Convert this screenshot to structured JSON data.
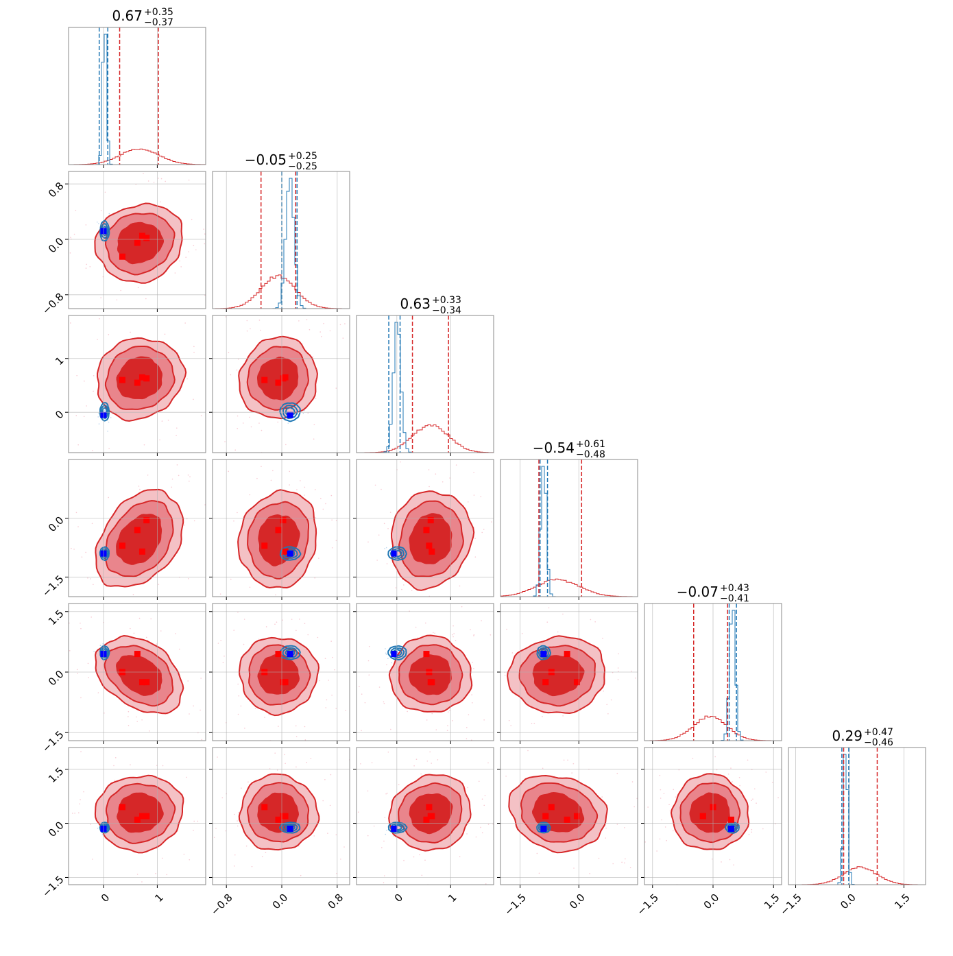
{
  "chart_data": {
    "type": "corner",
    "n_params": 6,
    "colors": {
      "posterior": "#d62728",
      "comparison": "#1f77b4",
      "truth_a": "#ff0000",
      "truth_b": "#0000ff"
    },
    "diagonal_titles": [
      {
        "median": "0.67",
        "plus": "+0.35",
        "minus": "−0.37"
      },
      {
        "median": "−0.05",
        "plus": "+0.25",
        "minus": "−0.25"
      },
      {
        "median": "0.63",
        "plus": "+0.33",
        "minus": "−0.34"
      },
      {
        "median": "−0.54",
        "plus": "+0.61",
        "minus": "−0.48"
      },
      {
        "median": "−0.07",
        "plus": "+0.43",
        "minus": "−0.41"
      },
      {
        "median": "0.29",
        "plus": "+0.47",
        "minus": "−0.46"
      }
    ],
    "axes": [
      {
        "lim": [
          -0.65,
          1.9
        ],
        "ticks": [
          0,
          1
        ],
        "tick_labels": [
          "0",
          "1"
        ]
      },
      {
        "lim": [
          -1.0,
          0.98
        ],
        "ticks": [
          -0.8,
          0.0,
          0.8
        ],
        "tick_labels": [
          "−0.8",
          "0.0",
          "0.8"
        ]
      },
      {
        "lim": [
          -0.75,
          1.8
        ],
        "ticks": [
          0,
          1
        ],
        "tick_labels": [
          "0",
          "1"
        ]
      },
      {
        "lim": [
          -2.0,
          1.5
        ],
        "ticks": [
          -1.5,
          0.0
        ],
        "tick_labels": [
          "−1.5",
          "0.0"
        ]
      },
      {
        "lim": [
          -1.7,
          1.7
        ],
        "ticks": [
          -1.5,
          0.0,
          1.5
        ],
        "tick_labels": [
          "−1.5",
          "0.0",
          "1.5"
        ]
      },
      {
        "lim": [
          -1.7,
          2.1
        ],
        "ticks": [
          -1.5,
          0.0,
          1.5
        ],
        "tick_labels": [
          "−1.5",
          "0.0",
          "1.5"
        ]
      }
    ],
    "y_axes": [
      null,
      {
        "ticks": [
          -0.8,
          0.0,
          0.8
        ],
        "tick_labels": [
          "−0.8",
          "0.0",
          "0.8"
        ]
      },
      {
        "ticks": [
          0,
          1
        ],
        "tick_labels": [
          "0",
          "1"
        ]
      },
      {
        "ticks": [
          -1.5,
          0.0
        ],
        "tick_labels": [
          "−1.5",
          "0.0"
        ]
      },
      {
        "ticks": [
          -1.5,
          0.0,
          1.5
        ],
        "tick_labels": [
          "−1.5",
          "0.0",
          "1.5"
        ]
      },
      {
        "ticks": [
          -1.5,
          0.0,
          1.5
        ],
        "tick_labels": [
          "−1.5",
          "0.0",
          "1.5"
        ]
      }
    ],
    "posterior": {
      "median": [
        0.67,
        -0.05,
        0.63,
        -0.54,
        -0.07,
        0.29
      ],
      "sigma": [
        0.36,
        0.25,
        0.335,
        0.55,
        0.42,
        0.465
      ],
      "q16": [
        0.3,
        -0.3,
        0.29,
        -1.02,
        -0.48,
        -0.17
      ],
      "q84": [
        1.02,
        0.2,
        0.96,
        0.07,
        0.36,
        0.76
      ]
    },
    "comparison": {
      "median": [
        0.02,
        0.12,
        0.01,
        -0.9,
        0.48,
        -0.12
      ],
      "sigma": [
        0.035,
        0.06,
        0.07,
        0.07,
        0.07,
        0.06
      ],
      "q16": [
        -0.08,
        0.0,
        -0.15,
        -0.99,
        0.4,
        -0.22
      ],
      "q84": [
        0.08,
        0.22,
        0.06,
        -0.8,
        0.58,
        -0.03
      ]
    },
    "correlations": [
      [
        1,
        0.1,
        0.1,
        0.35,
        -0.35,
        0.05
      ],
      [
        0.1,
        1,
        0.05,
        0.1,
        0.0,
        0.0
      ],
      [
        0.1,
        0.05,
        1,
        0.1,
        0.0,
        0.1
      ],
      [
        0.35,
        0.1,
        0.1,
        1,
        0.05,
        -0.15
      ],
      [
        -0.35,
        0.0,
        0.0,
        0.05,
        1,
        0.0
      ],
      [
        0.05,
        0.0,
        0.1,
        -0.15,
        0.0,
        1
      ]
    ],
    "red_markers": [
      [
        0.35,
        -0.25,
        0.6,
        -0.7,
        0.0,
        0.45
      ],
      [
        0.63,
        -0.05,
        0.55,
        -0.3,
        0.45,
        0.1
      ],
      [
        0.72,
        0.05,
        0.65,
        -0.85,
        -0.25,
        0.2
      ],
      [
        0.8,
        0.02,
        0.63,
        -0.05,
        -0.25,
        0.2
      ]
    ],
    "blue_marker": [
      0.0,
      0.12,
      -0.05,
      -0.9,
      0.45,
      -0.15
    ],
    "grid": true,
    "legend": "none"
  }
}
